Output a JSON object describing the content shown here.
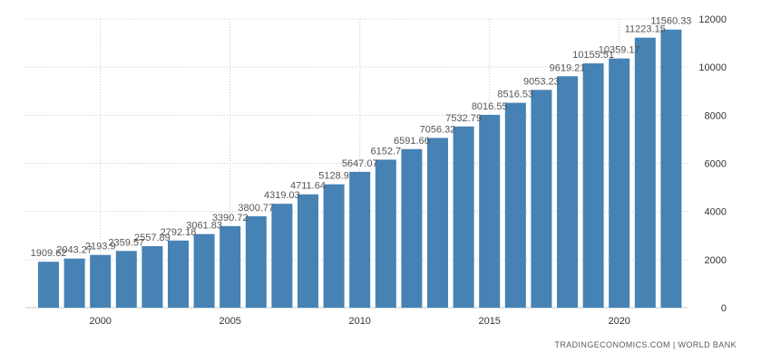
{
  "chart_data": {
    "type": "bar",
    "categories": [
      "1998",
      "1999",
      "2000",
      "2001",
      "2002",
      "2003",
      "2004",
      "2005",
      "2006",
      "2007",
      "2008",
      "2009",
      "2010",
      "2011",
      "2012",
      "2013",
      "2014",
      "2015",
      "2016",
      "2017",
      "2018",
      "2019",
      "2020",
      "2021",
      "2022"
    ],
    "values": [
      1909.62,
      2043.27,
      2193.9,
      2359.57,
      2557.89,
      2792.18,
      3061.83,
      3390.72,
      3800.77,
      4319.03,
      4711.64,
      5128.9,
      5647.07,
      6152.7,
      6591.66,
      7056.32,
      7532.79,
      8016.55,
      8516.53,
      9053.23,
      9619.21,
      10155.51,
      10359.17,
      11223.15,
      11560.33
    ],
    "labels": [
      "1909.62",
      "2043.27",
      "2193.9",
      "2359.57",
      "2557.89",
      "2792.18",
      "3061.83",
      "3390.72",
      "3800.77",
      "4319.03",
      "4711.64",
      "5128.9",
      "5647.07",
      "6152.7",
      "6591.66",
      "7056.32",
      "7532.79",
      "8016.55",
      "8516.53",
      "9053.23",
      "9619.21",
      "10155.51",
      "10359.17",
      "11223.15",
      "11560.33"
    ],
    "x_ticks": [
      "2000",
      "2005",
      "2010",
      "2015",
      "2020"
    ],
    "y_ticks": [
      "0",
      "2000",
      "4000",
      "6000",
      "8000",
      "10000",
      "12000"
    ],
    "ylim": [
      0,
      12000
    ],
    "title": "",
    "xlabel": "",
    "ylabel": "",
    "grid": "dotted vertical and horizontal",
    "y_axis_position": "right",
    "bar_color": "#4682b4"
  },
  "source": "TRADINGECONOMICS.COM | WORLD BANK"
}
